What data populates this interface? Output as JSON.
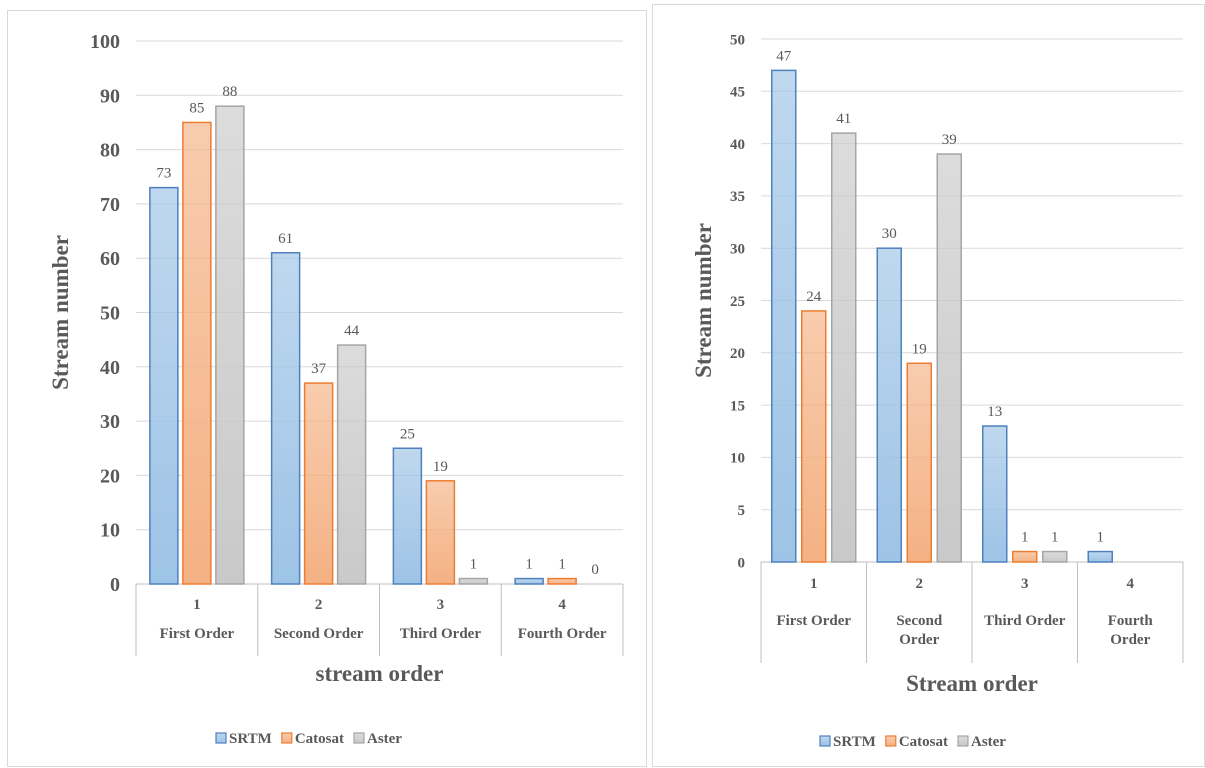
{
  "chart_data": [
    {
      "type": "bar",
      "title": "",
      "xlabel": "stream order",
      "ylabel": "Stream number",
      "ylim": [
        0,
        100
      ],
      "yticks": [
        0,
        10,
        20,
        30,
        40,
        50,
        60,
        70,
        80,
        90,
        100
      ],
      "categories": [
        "1",
        "2",
        "3",
        "4"
      ],
      "category_names": [
        "First Order",
        "Second Order",
        "Third Order",
        "Fourth Order"
      ],
      "series": [
        {
          "name": "SRTM",
          "values": [
            73,
            61,
            25,
            1
          ],
          "color": "#4f81bd",
          "fill": "#9dc3e6"
        },
        {
          "name": "Catosat",
          "values": [
            85,
            37,
            19,
            1
          ],
          "color": "#ed7d31",
          "fill": "#f4b183"
        },
        {
          "name": "Aster",
          "values": [
            88,
            44,
            1,
            0
          ],
          "color": "#a5a5a5",
          "fill": "#c9c9c9"
        }
      ],
      "legend": "bottom",
      "grid": true
    },
    {
      "type": "bar",
      "title": "",
      "xlabel": "Stream order",
      "ylabel": "Stream number",
      "ylim": [
        0,
        50
      ],
      "yticks": [
        0,
        5,
        10,
        15,
        20,
        25,
        30,
        35,
        40,
        45,
        50
      ],
      "categories": [
        "1",
        "2",
        "3",
        "4"
      ],
      "category_names": [
        "First Order",
        "Second Order",
        "Third Order",
        "Fourth Order"
      ],
      "series": [
        {
          "name": "SRTM",
          "values": [
            47,
            30,
            13,
            1
          ],
          "color": "#4f81bd",
          "fill": "#9dc3e6"
        },
        {
          "name": "Catosat",
          "values": [
            24,
            19,
            1,
            null
          ],
          "color": "#ed7d31",
          "fill": "#f4b183"
        },
        {
          "name": "Aster",
          "values": [
            41,
            39,
            1,
            null
          ],
          "color": "#a5a5a5",
          "fill": "#c9c9c9"
        }
      ],
      "legend": "bottom",
      "grid": true
    }
  ]
}
